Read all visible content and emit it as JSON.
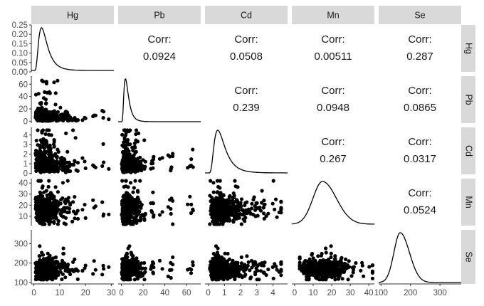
{
  "chart_data": {
    "type": "scatter-matrix",
    "variables": [
      "Hg",
      "Pb",
      "Cd",
      "Mn",
      "Se"
    ],
    "corr_label": "Corr:",
    "correlations": [
      {
        "row": "Pb",
        "col": "Hg",
        "value": "0.0924"
      },
      {
        "row": "Cd",
        "col": "Hg",
        "value": "0.0508"
      },
      {
        "row": "Mn",
        "col": "Hg",
        "value": "0.00511"
      },
      {
        "row": "Se",
        "col": "Hg",
        "value": "0.287"
      },
      {
        "row": "Cd",
        "col": "Pb",
        "value": "0.239"
      },
      {
        "row": "Mn",
        "col": "Pb",
        "value": "0.0948"
      },
      {
        "row": "Se",
        "col": "Pb",
        "value": "0.0865"
      },
      {
        "row": "Mn",
        "col": "Cd",
        "value": "0.267"
      },
      {
        "row": "Se",
        "col": "Cd",
        "value": "0.0317"
      },
      {
        "row": "Se",
        "col": "Mn",
        "value": "0.0524"
      }
    ],
    "x_axes": [
      {
        "var": "Hg",
        "range": [
          -1,
          31
        ],
        "ticks": [
          0,
          10,
          20,
          30
        ]
      },
      {
        "var": "Pb",
        "range": [
          -3,
          73
        ],
        "ticks": [
          0,
          20,
          40,
          60
        ]
      },
      {
        "var": "Cd",
        "range": [
          -0.2,
          4.9
        ],
        "ticks": [
          0,
          1,
          2,
          3,
          4
        ]
      },
      {
        "var": "Mn",
        "range": [
          -1.5,
          43
        ],
        "ticks": [
          0,
          10,
          20,
          30,
          40
        ]
      },
      {
        "var": "Se",
        "range": [
          92,
          372
        ],
        "ticks": [
          100,
          200,
          300
        ]
      }
    ],
    "y_axes": [
      {
        "var": "Hg",
        "kind": "density",
        "range": [
          0,
          0.25
        ],
        "ticks": [
          "0.00",
          "0.05",
          "0.10",
          "0.15",
          "0.20",
          "0.25"
        ]
      },
      {
        "var": "Pb",
        "range": [
          -3,
          73
        ],
        "ticks": [
          0,
          20,
          40,
          60
        ]
      },
      {
        "var": "Cd",
        "range": [
          -0.1,
          4.8
        ],
        "ticks": [
          0,
          1,
          2,
          3,
          4
        ]
      },
      {
        "var": "Mn",
        "range": [
          1.5,
          44
        ],
        "ticks": [
          10,
          20,
          30,
          40
        ]
      },
      {
        "var": "Se",
        "range": [
          92,
          372
        ],
        "ticks": [
          100,
          200,
          300
        ]
      }
    ],
    "variable_summary": [
      {
        "var": "Hg",
        "mode": 2.5,
        "median": 4,
        "spread": 3.5,
        "max": 29
      },
      {
        "var": "Pb",
        "mode": 2.5,
        "median": 5,
        "spread": 7,
        "max": 70
      },
      {
        "var": "Cd",
        "mode": 0.5,
        "median": 0.8,
        "spread": 0.6,
        "max": 4.5
      },
      {
        "var": "Mn",
        "mode": 15,
        "median": 16,
        "spread": 6,
        "max": 42
      },
      {
        "var": "Se",
        "mode": 165,
        "median": 170,
        "spread": 25,
        "max": 350
      }
    ]
  }
}
